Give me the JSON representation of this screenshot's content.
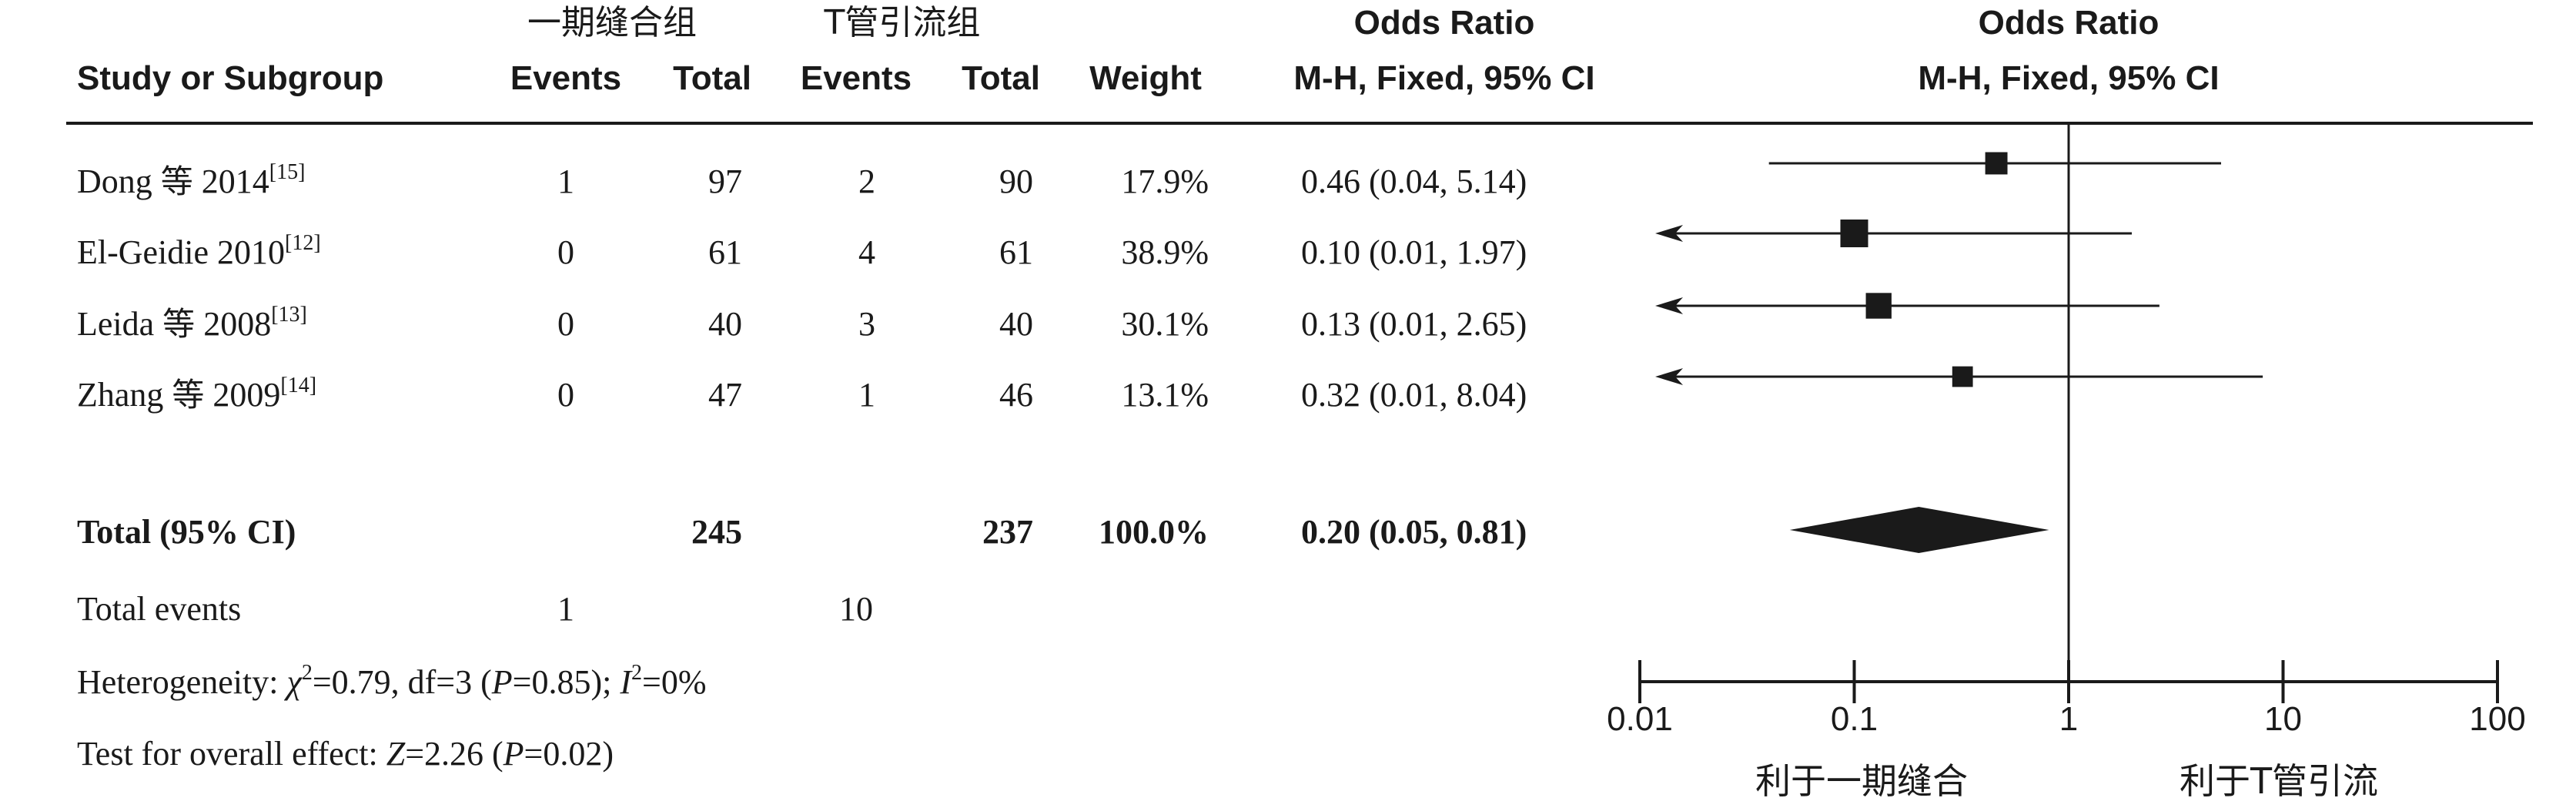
{
  "header": {
    "group1": "一期缝合组",
    "group2": "T管引流组",
    "or_title": "Odds Ratio",
    "method": "M-H, Fixed, 95% CI",
    "plot_title": "Odds Ratio",
    "plot_method": "M-H, Fixed, 95% CI",
    "col_study": "Study or Subgroup",
    "col_events1": "Events",
    "col_total1": "Total",
    "col_events2": "Events",
    "col_total2": "Total",
    "col_weight": "Weight"
  },
  "studies": [
    {
      "name": "Dong",
      "deng": "等",
      "year": "2014",
      "ref": "[15]",
      "events1": "1",
      "total1": "97",
      "events2": "2",
      "total2": "90",
      "weight": "17.9%",
      "ci": "0.46 (0.04, 5.14)"
    },
    {
      "name": "El-Geidie",
      "deng": "",
      "year": "2010",
      "ref": "[12]",
      "events1": "0",
      "total1": "61",
      "events2": "4",
      "total2": "61",
      "weight": "38.9%",
      "ci": "0.10 (0.01, 1.97)"
    },
    {
      "name": "Leida",
      "deng": "等",
      "year": "2008",
      "ref": "[13]",
      "events1": "0",
      "total1": "40",
      "events2": "3",
      "total2": "40",
      "weight": "30.1%",
      "ci": "0.13 (0.01, 2.65)"
    },
    {
      "name": "Zhang",
      "deng": "等",
      "year": "2009",
      "ref": "[14]",
      "events1": "0",
      "total1": "47",
      "events2": "1",
      "total2": "46",
      "weight": "13.1%",
      "ci": "0.32 (0.01, 8.04)"
    }
  ],
  "total": {
    "label": "Total (95% CI)",
    "total1": "245",
    "total2": "237",
    "weight": "100.0%",
    "ci": "0.20 (0.05, 0.81)"
  },
  "total_events": {
    "label": "Total events",
    "events1": "1",
    "events2": "10"
  },
  "heterogeneity": {
    "prefix": "Heterogeneity: ",
    "chi": "χ",
    "chi_rest": "=0.79, df=3 (",
    "p": "P",
    "p_rest": "=0.85); ",
    "i": "I",
    "i_rest": "=0%"
  },
  "overall": {
    "prefix": "Test for overall effect: ",
    "z": "Z",
    "z_rest": "=2.26 (",
    "p": "P",
    "p_rest": "=0.02)"
  },
  "axis": {
    "ticks": [
      "0.01",
      "0.1",
      "1",
      "10",
      "100"
    ],
    "favours_left": "利于一期缝合",
    "favours_right": "利于T管引流"
  },
  "chart_data": {
    "type": "forest",
    "scale": "log",
    "xlim": [
      0.01,
      100
    ],
    "studies": [
      {
        "study": "Dong 等 2014",
        "or": 0.46,
        "lower": 0.04,
        "upper": 5.14,
        "weight": 17.9
      },
      {
        "study": "El-Geidie 2010",
        "or": 0.1,
        "lower": 0.01,
        "upper": 1.97,
        "weight": 38.9
      },
      {
        "study": "Leida 等 2008",
        "or": 0.13,
        "lower": 0.01,
        "upper": 2.65,
        "weight": 30.1
      },
      {
        "study": "Zhang 等 2009",
        "or": 0.32,
        "lower": 0.01,
        "upper": 8.04,
        "weight": 13.1
      }
    ],
    "pooled": {
      "or": 0.2,
      "lower": 0.05,
      "upper": 0.81
    }
  }
}
